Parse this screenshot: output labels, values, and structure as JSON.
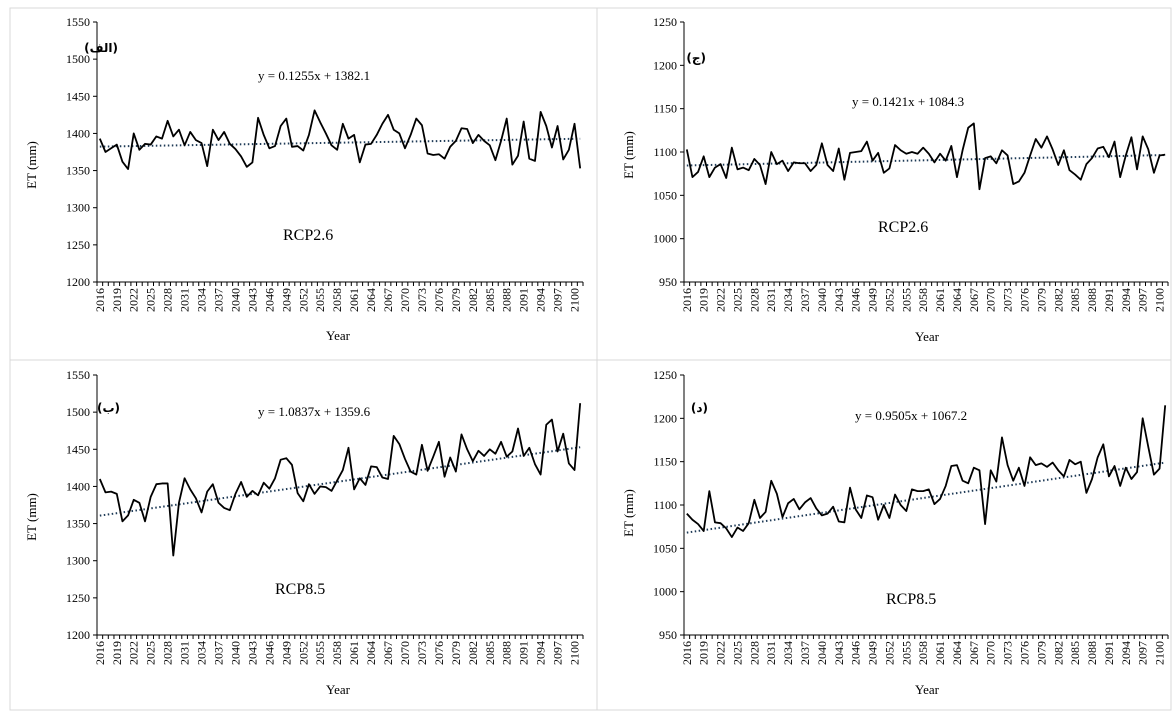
{
  "chart_data": [
    {
      "type": "line",
      "panel_label": "(الف)",
      "scenario_label": "RCP2.6",
      "trendline_equation": "y = 0.1255x + 1382.1",
      "trend": {
        "slope": 0.1255,
        "intercept": 1382.1
      },
      "xlabel": "Year",
      "ylabel": "ET (mm)",
      "ylim": [
        1200,
        1550
      ],
      "yticks": [
        1200,
        1250,
        1300,
        1350,
        1400,
        1450,
        1500,
        1550
      ],
      "x_start": 2016,
      "x_end": 2100,
      "xtick_labels": [
        "2016",
        "2019",
        "2022",
        "2025",
        "2028",
        "2031",
        "2034",
        "2037",
        "2040",
        "2043",
        "2046",
        "2049",
        "2052",
        "2055",
        "2058",
        "2061",
        "2064",
        "2067",
        "2070",
        "2073",
        "2076",
        "2079",
        "2082",
        "2085",
        "2088",
        "2091",
        "2094",
        "2097",
        "2100"
      ],
      "values": [
        1393,
        1375,
        1380,
        1385,
        1362,
        1352,
        1400,
        1378,
        1386,
        1385,
        1396,
        1393,
        1417,
        1396,
        1405,
        1384,
        1402,
        1391,
        1387,
        1356,
        1405,
        1391,
        1402,
        1386,
        1379,
        1369,
        1355,
        1361,
        1421,
        1398,
        1380,
        1383,
        1410,
        1420,
        1382,
        1383,
        1377,
        1398,
        1431,
        1415,
        1400,
        1384,
        1378,
        1413,
        1393,
        1398,
        1361,
        1385,
        1386,
        1398,
        1413,
        1425,
        1405,
        1400,
        1380,
        1398,
        1420,
        1411,
        1373,
        1371,
        1372,
        1366,
        1382,
        1390,
        1407,
        1406,
        1387,
        1398,
        1390,
        1384,
        1364,
        1390,
        1420,
        1358,
        1370,
        1416,
        1366,
        1363,
        1429,
        1410,
        1381,
        1410,
        1365,
        1378,
        1413,
        1353
      ]
    },
    {
      "type": "line",
      "panel_label": "(ج)",
      "scenario_label": "RCP2.6",
      "trendline_equation": "y = 0.1421x + 1084.3",
      "trend": {
        "slope": 0.1421,
        "intercept": 1084.3
      },
      "xlabel": "Year",
      "ylabel": "ET (mm)",
      "ylim": [
        950,
        1250
      ],
      "yticks": [
        950,
        1000,
        1050,
        1100,
        1150,
        1200,
        1250
      ],
      "x_start": 2016,
      "x_end": 2100,
      "xtick_labels": [
        "2016",
        "2019",
        "2022",
        "2025",
        "2028",
        "2031",
        "2034",
        "2037",
        "2040",
        "2043",
        "2046",
        "2049",
        "2052",
        "2055",
        "2058",
        "2061",
        "2064",
        "2067",
        "2070",
        "2073",
        "2076",
        "2079",
        "2082",
        "2085",
        "2088",
        "2091",
        "2094",
        "2097",
        "2100"
      ],
      "values": [
        1103,
        1071,
        1077,
        1095,
        1071,
        1082,
        1086,
        1070,
        1105,
        1080,
        1082,
        1079,
        1092,
        1085,
        1063,
        1100,
        1086,
        1090,
        1078,
        1088,
        1087,
        1087,
        1078,
        1085,
        1110,
        1085,
        1078,
        1104,
        1068,
        1099,
        1100,
        1101,
        1112,
        1090,
        1099,
        1076,
        1081,
        1108,
        1102,
        1098,
        1100,
        1098,
        1105,
        1098,
        1088,
        1098,
        1090,
        1107,
        1071,
        1102,
        1128,
        1133,
        1057,
        1093,
        1095,
        1087,
        1102,
        1096,
        1063,
        1066,
        1076,
        1096,
        1115,
        1105,
        1118,
        1103,
        1085,
        1102,
        1079,
        1074,
        1068,
        1086,
        1093,
        1104,
        1106,
        1094,
        1112,
        1071,
        1096,
        1117,
        1080,
        1118,
        1103,
        1076,
        1096,
        1097
      ]
    },
    {
      "type": "line",
      "panel_label": "(ب)",
      "scenario_label": "RCP8.5",
      "trendline_equation": "y = 1.0837x + 1359.6",
      "trend": {
        "slope": 1.0837,
        "intercept": 1359.6
      },
      "xlabel": "Year",
      "ylabel": "ET (mm)",
      "ylim": [
        1200,
        1550
      ],
      "yticks": [
        1200,
        1250,
        1300,
        1350,
        1400,
        1450,
        1500,
        1550
      ],
      "x_start": 2016,
      "x_end": 2100,
      "xtick_labels": [
        "2016",
        "2019",
        "2022",
        "2025",
        "2028",
        "2031",
        "2034",
        "2037",
        "2040",
        "2043",
        "2046",
        "2049",
        "2052",
        "2055",
        "2058",
        "2061",
        "2064",
        "2067",
        "2070",
        "2073",
        "2076",
        "2079",
        "2082",
        "2085",
        "2088",
        "2091",
        "2094",
        "2097",
        "2100"
      ],
      "values": [
        1410,
        1392,
        1393,
        1390,
        1353,
        1361,
        1382,
        1378,
        1353,
        1386,
        1403,
        1404,
        1404,
        1307,
        1378,
        1411,
        1396,
        1384,
        1365,
        1393,
        1403,
        1378,
        1371,
        1368,
        1390,
        1406,
        1386,
        1394,
        1388,
        1405,
        1397,
        1411,
        1436,
        1438,
        1429,
        1391,
        1380,
        1403,
        1390,
        1400,
        1399,
        1394,
        1408,
        1422,
        1452,
        1396,
        1411,
        1402,
        1427,
        1426,
        1412,
        1410,
        1468,
        1457,
        1437,
        1420,
        1416,
        1456,
        1421,
        1440,
        1460,
        1413,
        1439,
        1420,
        1470,
        1450,
        1434,
        1448,
        1441,
        1450,
        1444,
        1460,
        1440,
        1447,
        1478,
        1441,
        1452,
        1430,
        1416,
        1483,
        1490,
        1447,
        1471,
        1431,
        1422,
        1512
      ]
    },
    {
      "type": "line",
      "panel_label": "(د)",
      "scenario_label": "RCP8.5",
      "trendline_equation": "y = 0.9505x + 1067.2",
      "trend": {
        "slope": 0.9505,
        "intercept": 1067.2
      },
      "xlabel": "Year",
      "ylabel": "ET (mm)",
      "ylim": [
        950,
        1250
      ],
      "yticks": [
        950,
        1000,
        1050,
        1100,
        1150,
        1200,
        1250
      ],
      "x_start": 2016,
      "x_end": 2100,
      "xtick_labels": [
        "2016",
        "2019",
        "2022",
        "2025",
        "2028",
        "2031",
        "2034",
        "2037",
        "2040",
        "2043",
        "2046",
        "2049",
        "2052",
        "2055",
        "2058",
        "2061",
        "2064",
        "2067",
        "2070",
        "2073",
        "2076",
        "2079",
        "2082",
        "2085",
        "2088",
        "2091",
        "2094",
        "2097",
        "2100"
      ],
      "values": [
        1090,
        1083,
        1078,
        1070,
        1116,
        1080,
        1079,
        1073,
        1063,
        1074,
        1070,
        1079,
        1106,
        1085,
        1092,
        1128,
        1113,
        1086,
        1102,
        1107,
        1095,
        1103,
        1108,
        1096,
        1088,
        1090,
        1098,
        1081,
        1080,
        1120,
        1095,
        1085,
        1111,
        1109,
        1083,
        1100,
        1085,
        1112,
        1100,
        1093,
        1118,
        1116,
        1116,
        1118,
        1101,
        1107,
        1122,
        1145,
        1146,
        1128,
        1125,
        1143,
        1140,
        1078,
        1140,
        1127,
        1178,
        1146,
        1128,
        1143,
        1122,
        1155,
        1146,
        1148,
        1144,
        1149,
        1140,
        1133,
        1152,
        1147,
        1150,
        1114,
        1130,
        1155,
        1170,
        1133,
        1145,
        1122,
        1143,
        1130,
        1138,
        1200,
        1167,
        1135,
        1142,
        1215
      ]
    }
  ]
}
